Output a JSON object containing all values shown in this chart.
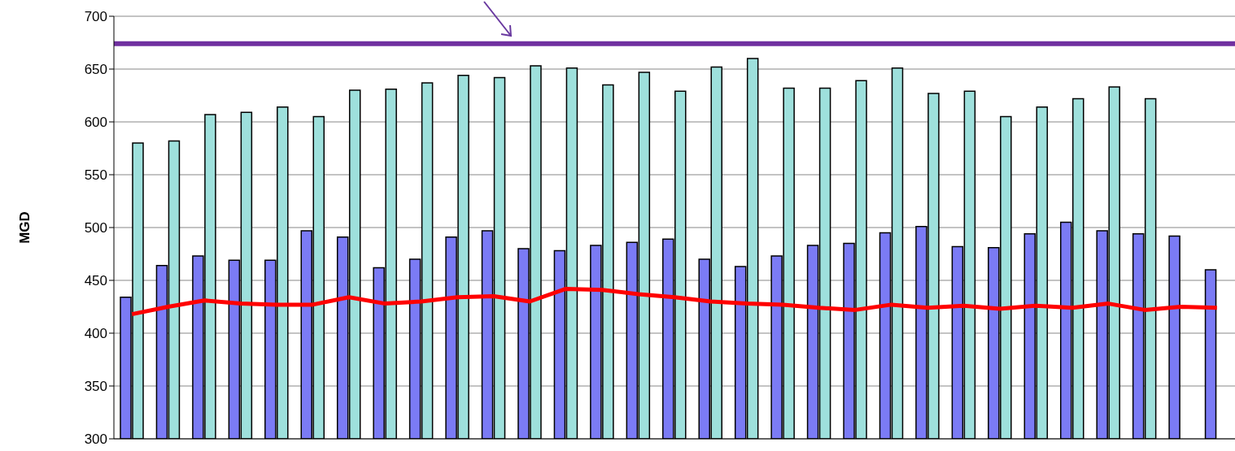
{
  "chart_data": {
    "type": "bar",
    "ylabel": "MGD",
    "categories": [
      null,
      null,
      null,
      null,
      null,
      null,
      null,
      null,
      null,
      null,
      null,
      null,
      null,
      null,
      null,
      null,
      null,
      null,
      null,
      null,
      null,
      null,
      null,
      null,
      null,
      null,
      null,
      null,
      null,
      null,
      null
    ],
    "series": [
      {
        "color": "#7b7bf5",
        "values": [
          434,
          464,
          473,
          469,
          469,
          497,
          491,
          462,
          470,
          491,
          497,
          480,
          478,
          483,
          486,
          489,
          470,
          463,
          473,
          483,
          485,
          495,
          501,
          482,
          481,
          494,
          505,
          497,
          494,
          492,
          460
        ]
      },
      {
        "color": "#9ee0dc",
        "values": [
          580,
          582,
          607,
          609,
          614,
          605,
          630,
          631,
          637,
          644,
          642,
          653,
          651,
          635,
          647,
          629,
          652,
          660,
          632,
          632,
          639,
          651,
          627,
          629,
          605,
          614,
          622,
          633,
          622,
          null,
          null
        ]
      },
      {
        "type": "line",
        "color": "#ff0000",
        "values": [
          418,
          425,
          431,
          428,
          427,
          427,
          434,
          428,
          430,
          434,
          435,
          430,
          442,
          441,
          437,
          434,
          430,
          428,
          427,
          424,
          422,
          427,
          424,
          426,
          423,
          426,
          424,
          428,
          422,
          425,
          424
        ]
      }
    ],
    "ref_lines": [
      {
        "axis": "y",
        "value": 674,
        "color": "#7030a0"
      }
    ],
    "ylim": [
      300,
      700
    ],
    "yticks": [
      300,
      350,
      400,
      450,
      500,
      550,
      600,
      650,
      700
    ],
    "grid": "y",
    "marker": "none"
  }
}
